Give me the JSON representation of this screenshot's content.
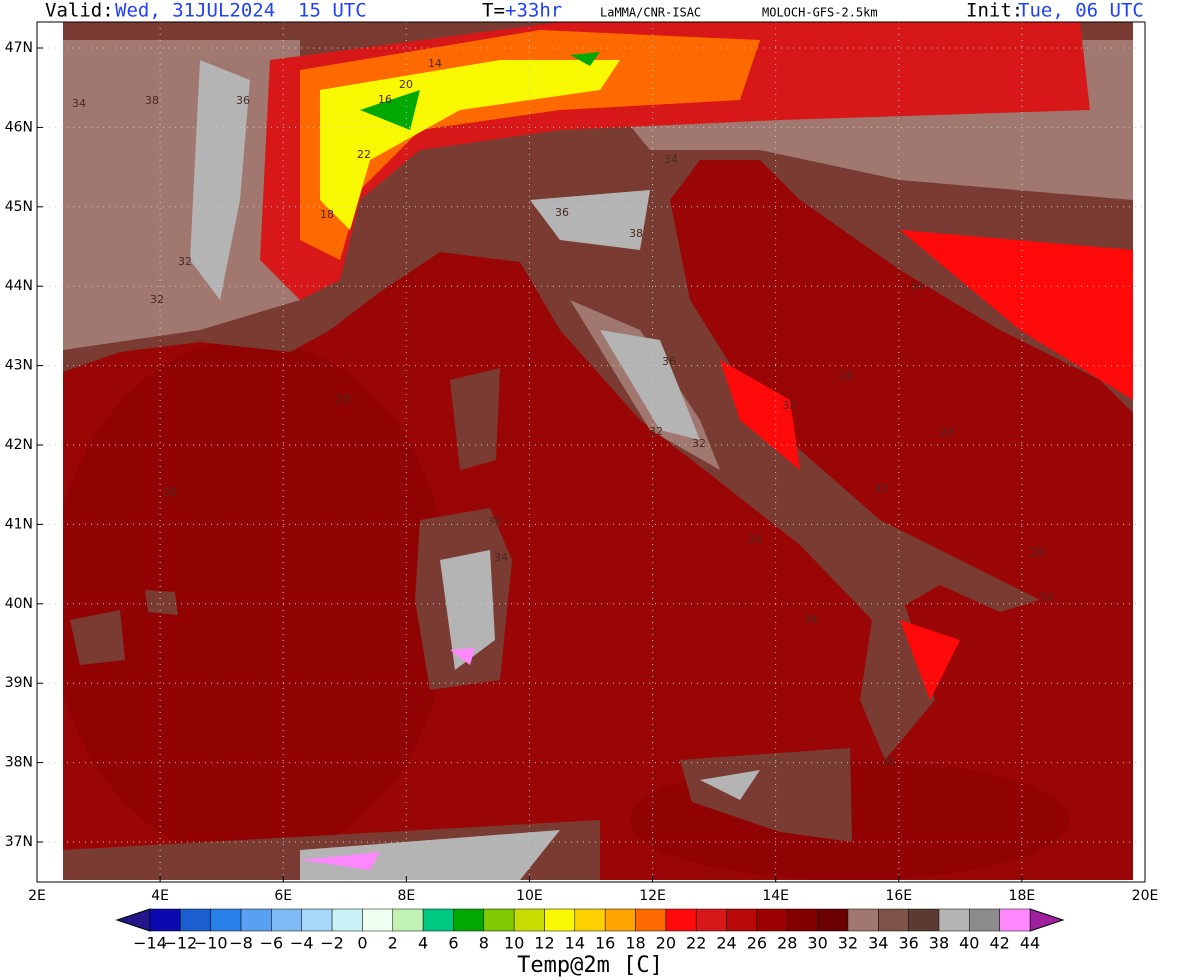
{
  "header": {
    "valid_label": "Valid:",
    "valid_time": "Wed, 31JUL2024  15 UTC",
    "lead_label": "T=",
    "lead": "+33hr",
    "source": "LaMMA/CNR-ISAC",
    "model": "MOLOCH-GFS-2.5km",
    "init_label": "Init:",
    "init_time": "Tue, 06 UTC"
  },
  "axes": {
    "lon_labels": [
      "2E",
      "4E",
      "6E",
      "8E",
      "10E",
      "12E",
      "14E",
      "16E",
      "18E",
      "20E"
    ],
    "lat_labels": [
      "47N",
      "46N",
      "45N",
      "44N",
      "43N",
      "42N",
      "41N",
      "40N",
      "39N",
      "38N",
      "37N"
    ]
  },
  "contour_labels": [
    "34",
    "38",
    "36",
    "32",
    "20",
    "16",
    "18",
    "14",
    "22",
    "34",
    "36",
    "38",
    "32",
    "28",
    "28",
    "34",
    "28",
    "32",
    "34",
    "36",
    "32",
    "28",
    "28",
    "34",
    "32",
    "30",
    "34",
    "36",
    "28",
    "32"
  ],
  "colorbar": {
    "labels": [
      "−14",
      "−12",
      "−10",
      "−8",
      "−6",
      "−4",
      "−2",
      "0",
      "2",
      "4",
      "6",
      "8",
      "10",
      "12",
      "14",
      "16",
      "18",
      "20",
      "22",
      "24",
      "26",
      "28",
      "30",
      "32",
      "34",
      "36",
      "38",
      "40",
      "42",
      "44"
    ],
    "low_color": "#22168a",
    "high_color": "#a020a0",
    "colors": [
      "#0a0ab0",
      "#1a5ed0",
      "#2a80ea",
      "#58a0f0",
      "#7ebcf5",
      "#a8d8fa",
      "#c8f2f6",
      "#ecfff0",
      "#c0f2b4",
      "#00c880",
      "#00a800",
      "#80c800",
      "#c8dc00",
      "#f8f800",
      "#ffd000",
      "#ffa400",
      "#ff6a00",
      "#ff0a0a",
      "#d81818",
      "#b80808",
      "#9c0000",
      "#820000",
      "#6c0000",
      "#a07870",
      "#7e5448",
      "#5c3a32",
      "#b4b4b4",
      "#8c8c8c",
      "#ff88ff",
      "#ff10ff"
    ],
    "title": "Temp@2m [C]"
  }
}
